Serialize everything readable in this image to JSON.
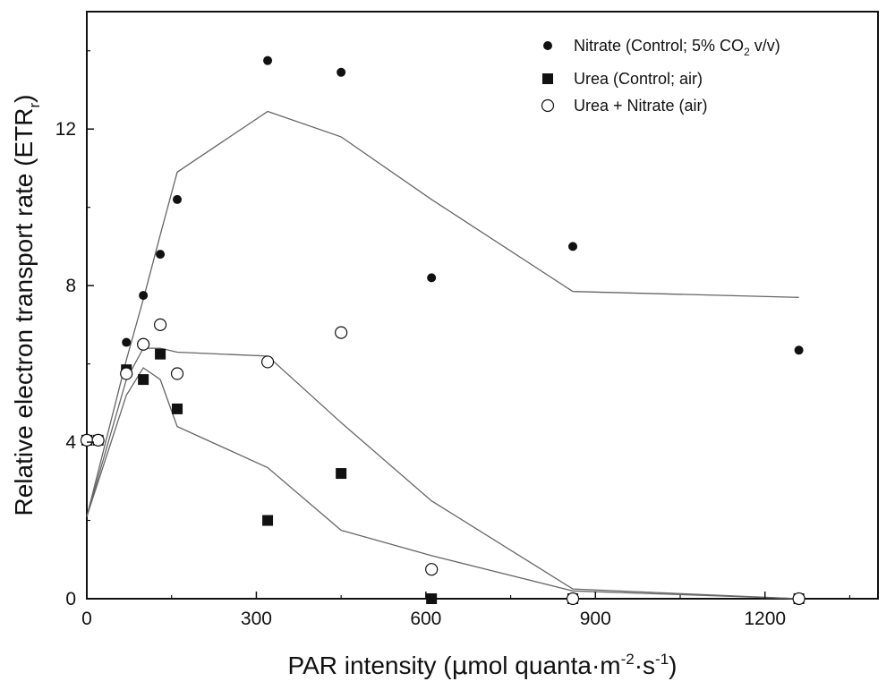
{
  "chart_data": {
    "type": "scatter",
    "title": "",
    "xlabel": {
      "main": "PAR intensity (",
      "mu": "μ",
      "rest1": "mol quanta·m",
      "sup1": "-2",
      "rest2": "·s",
      "sup2": "-1",
      "close": ")"
    },
    "ylabel": {
      "main": "Relative electron transport rate (ETR",
      "sub": "r",
      "close": ")"
    },
    "xlim": [
      0,
      1400
    ],
    "ylim": [
      0,
      15
    ],
    "xticks": [
      0,
      300,
      600,
      900,
      1200
    ],
    "xtick_labels": [
      "0",
      "300",
      "600",
      "900",
      "1200"
    ],
    "yticks": [
      0,
      4,
      8,
      12
    ],
    "ytick_labels": [
      "0",
      "4",
      "8",
      "12"
    ],
    "grid": false,
    "legend_position": "top-right",
    "series": [
      {
        "name": "Nitrate (Control; 5% CO2 v/v)",
        "legend": {
          "main": "Nitrate (Control; 5% CO",
          "sub": "2",
          "rest": " v/v)"
        },
        "marker": "filled-circle",
        "x": [
          0,
          20,
          70,
          100,
          130,
          160,
          320,
          450,
          610,
          860,
          1260
        ],
        "y": [
          4.05,
          4.05,
          6.55,
          7.75,
          8.8,
          10.2,
          13.75,
          13.45,
          8.2,
          9.0,
          6.35
        ],
        "fit_x": [
          0,
          70,
          100,
          130,
          160,
          320,
          450,
          610,
          860,
          1260
        ],
        "fit_y": [
          2.1,
          6.1,
          7.65,
          9.3,
          10.9,
          12.45,
          11.8,
          10.2,
          7.85,
          7.7
        ]
      },
      {
        "name": "Urea (Control; air)",
        "legend": {
          "main": "Urea (Control; air)"
        },
        "marker": "filled-square",
        "x": [
          0,
          20,
          70,
          100,
          130,
          160,
          320,
          450,
          610,
          860,
          1260
        ],
        "y": [
          4.05,
          4.05,
          5.85,
          5.6,
          6.25,
          4.85,
          2.0,
          3.2,
          0.0,
          0.0,
          0.0
        ],
        "fit_x": [
          0,
          70,
          100,
          130,
          160,
          320,
          450,
          610,
          860,
          1260
        ],
        "fit_y": [
          2.1,
          5.2,
          5.9,
          5.6,
          4.4,
          3.35,
          1.75,
          1.1,
          0.2,
          0.0
        ]
      },
      {
        "name": "Urea + Nitrate (air)",
        "legend": {
          "main": "Urea + Nitrate (air)"
        },
        "marker": "open-circle",
        "x": [
          0,
          20,
          70,
          100,
          130,
          160,
          320,
          450,
          610,
          860,
          1260
        ],
        "y": [
          4.05,
          4.05,
          5.75,
          6.5,
          7.0,
          5.75,
          6.05,
          6.8,
          0.75,
          0.0,
          0.0
        ],
        "fit_x": [
          0,
          70,
          100,
          130,
          160,
          320,
          450,
          610,
          860,
          1260
        ],
        "fit_y": [
          2.1,
          5.6,
          6.4,
          6.4,
          6.3,
          6.2,
          4.5,
          2.5,
          0.25,
          0.0
        ]
      }
    ]
  }
}
